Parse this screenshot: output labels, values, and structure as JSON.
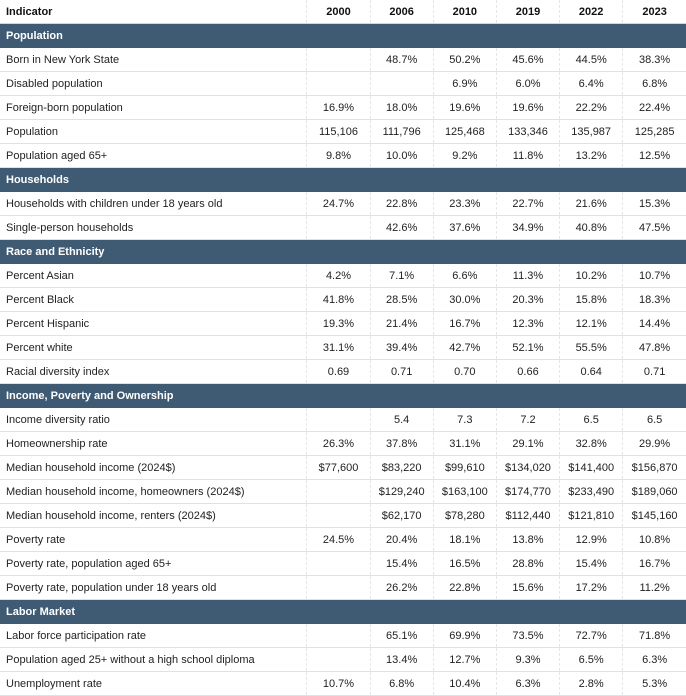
{
  "header": {
    "indicator": "Indicator",
    "years": [
      "2000",
      "2006",
      "2010",
      "2019",
      "2022",
      "2023"
    ]
  },
  "sections": [
    {
      "title": "Population",
      "rows": [
        {
          "label": "Born in New York State",
          "values": [
            "",
            "48.7%",
            "50.2%",
            "45.6%",
            "44.5%",
            "38.3%"
          ]
        },
        {
          "label": "Disabled population",
          "values": [
            "",
            "",
            "6.9%",
            "6.0%",
            "6.4%",
            "6.8%"
          ]
        },
        {
          "label": "Foreign-born population",
          "values": [
            "16.9%",
            "18.0%",
            "19.6%",
            "19.6%",
            "22.2%",
            "22.4%"
          ]
        },
        {
          "label": "Population",
          "values": [
            "115,106",
            "111,796",
            "125,468",
            "133,346",
            "135,987",
            "125,285"
          ]
        },
        {
          "label": "Population aged 65+",
          "values": [
            "9.8%",
            "10.0%",
            "9.2%",
            "11.8%",
            "13.2%",
            "12.5%"
          ]
        }
      ]
    },
    {
      "title": "Households",
      "rows": [
        {
          "label": "Households with children under 18 years old",
          "values": [
            "24.7%",
            "22.8%",
            "23.3%",
            "22.7%",
            "21.6%",
            "15.3%"
          ]
        },
        {
          "label": "Single-person households",
          "values": [
            "",
            "42.6%",
            "37.6%",
            "34.9%",
            "40.8%",
            "47.5%"
          ]
        }
      ]
    },
    {
      "title": "Race and Ethnicity",
      "rows": [
        {
          "label": "Percent Asian",
          "values": [
            "4.2%",
            "7.1%",
            "6.6%",
            "11.3%",
            "10.2%",
            "10.7%"
          ]
        },
        {
          "label": "Percent Black",
          "values": [
            "41.8%",
            "28.5%",
            "30.0%",
            "20.3%",
            "15.8%",
            "18.3%"
          ]
        },
        {
          "label": "Percent Hispanic",
          "values": [
            "19.3%",
            "21.4%",
            "16.7%",
            "12.3%",
            "12.1%",
            "14.4%"
          ]
        },
        {
          "label": "Percent white",
          "values": [
            "31.1%",
            "39.4%",
            "42.7%",
            "52.1%",
            "55.5%",
            "47.8%"
          ]
        },
        {
          "label": "Racial diversity index",
          "values": [
            "0.69",
            "0.71",
            "0.70",
            "0.66",
            "0.64",
            "0.71"
          ]
        }
      ]
    },
    {
      "title": "Income, Poverty and Ownership",
      "rows": [
        {
          "label": "Income diversity ratio",
          "values": [
            "",
            "5.4",
            "7.3",
            "7.2",
            "6.5",
            "6.5"
          ]
        },
        {
          "label": "Homeownership rate",
          "values": [
            "26.3%",
            "37.8%",
            "31.1%",
            "29.1%",
            "32.8%",
            "29.9%"
          ]
        },
        {
          "label": "Median household income (2024$)",
          "values": [
            "$77,600",
            "$83,220",
            "$99,610",
            "$134,020",
            "$141,400",
            "$156,870"
          ]
        },
        {
          "label": "Median household income, homeowners (2024$)",
          "values": [
            "",
            "$129,240",
            "$163,100",
            "$174,770",
            "$233,490",
            "$189,060"
          ]
        },
        {
          "label": "Median household income, renters (2024$)",
          "values": [
            "",
            "$62,170",
            "$78,280",
            "$112,440",
            "$121,810",
            "$145,160"
          ]
        },
        {
          "label": "Poverty rate",
          "values": [
            "24.5%",
            "20.4%",
            "18.1%",
            "13.8%",
            "12.9%",
            "10.8%"
          ]
        },
        {
          "label": "Poverty rate, population aged 65+",
          "values": [
            "",
            "15.4%",
            "16.5%",
            "28.8%",
            "15.4%",
            "16.7%"
          ]
        },
        {
          "label": "Poverty rate, population under 18 years old",
          "values": [
            "",
            "26.2%",
            "22.8%",
            "15.6%",
            "17.2%",
            "11.2%"
          ]
        }
      ]
    },
    {
      "title": "Labor Market",
      "rows": [
        {
          "label": "Labor force participation rate",
          "values": [
            "",
            "65.1%",
            "69.9%",
            "73.5%",
            "72.7%",
            "71.8%"
          ]
        },
        {
          "label": "Population aged 25+ without a high school diploma",
          "values": [
            "",
            "13.4%",
            "12.7%",
            "9.3%",
            "6.5%",
            "6.3%"
          ]
        },
        {
          "label": "Unemployment rate",
          "values": [
            "10.7%",
            "6.8%",
            "10.4%",
            "6.3%",
            "2.8%",
            "5.3%"
          ]
        }
      ]
    }
  ]
}
